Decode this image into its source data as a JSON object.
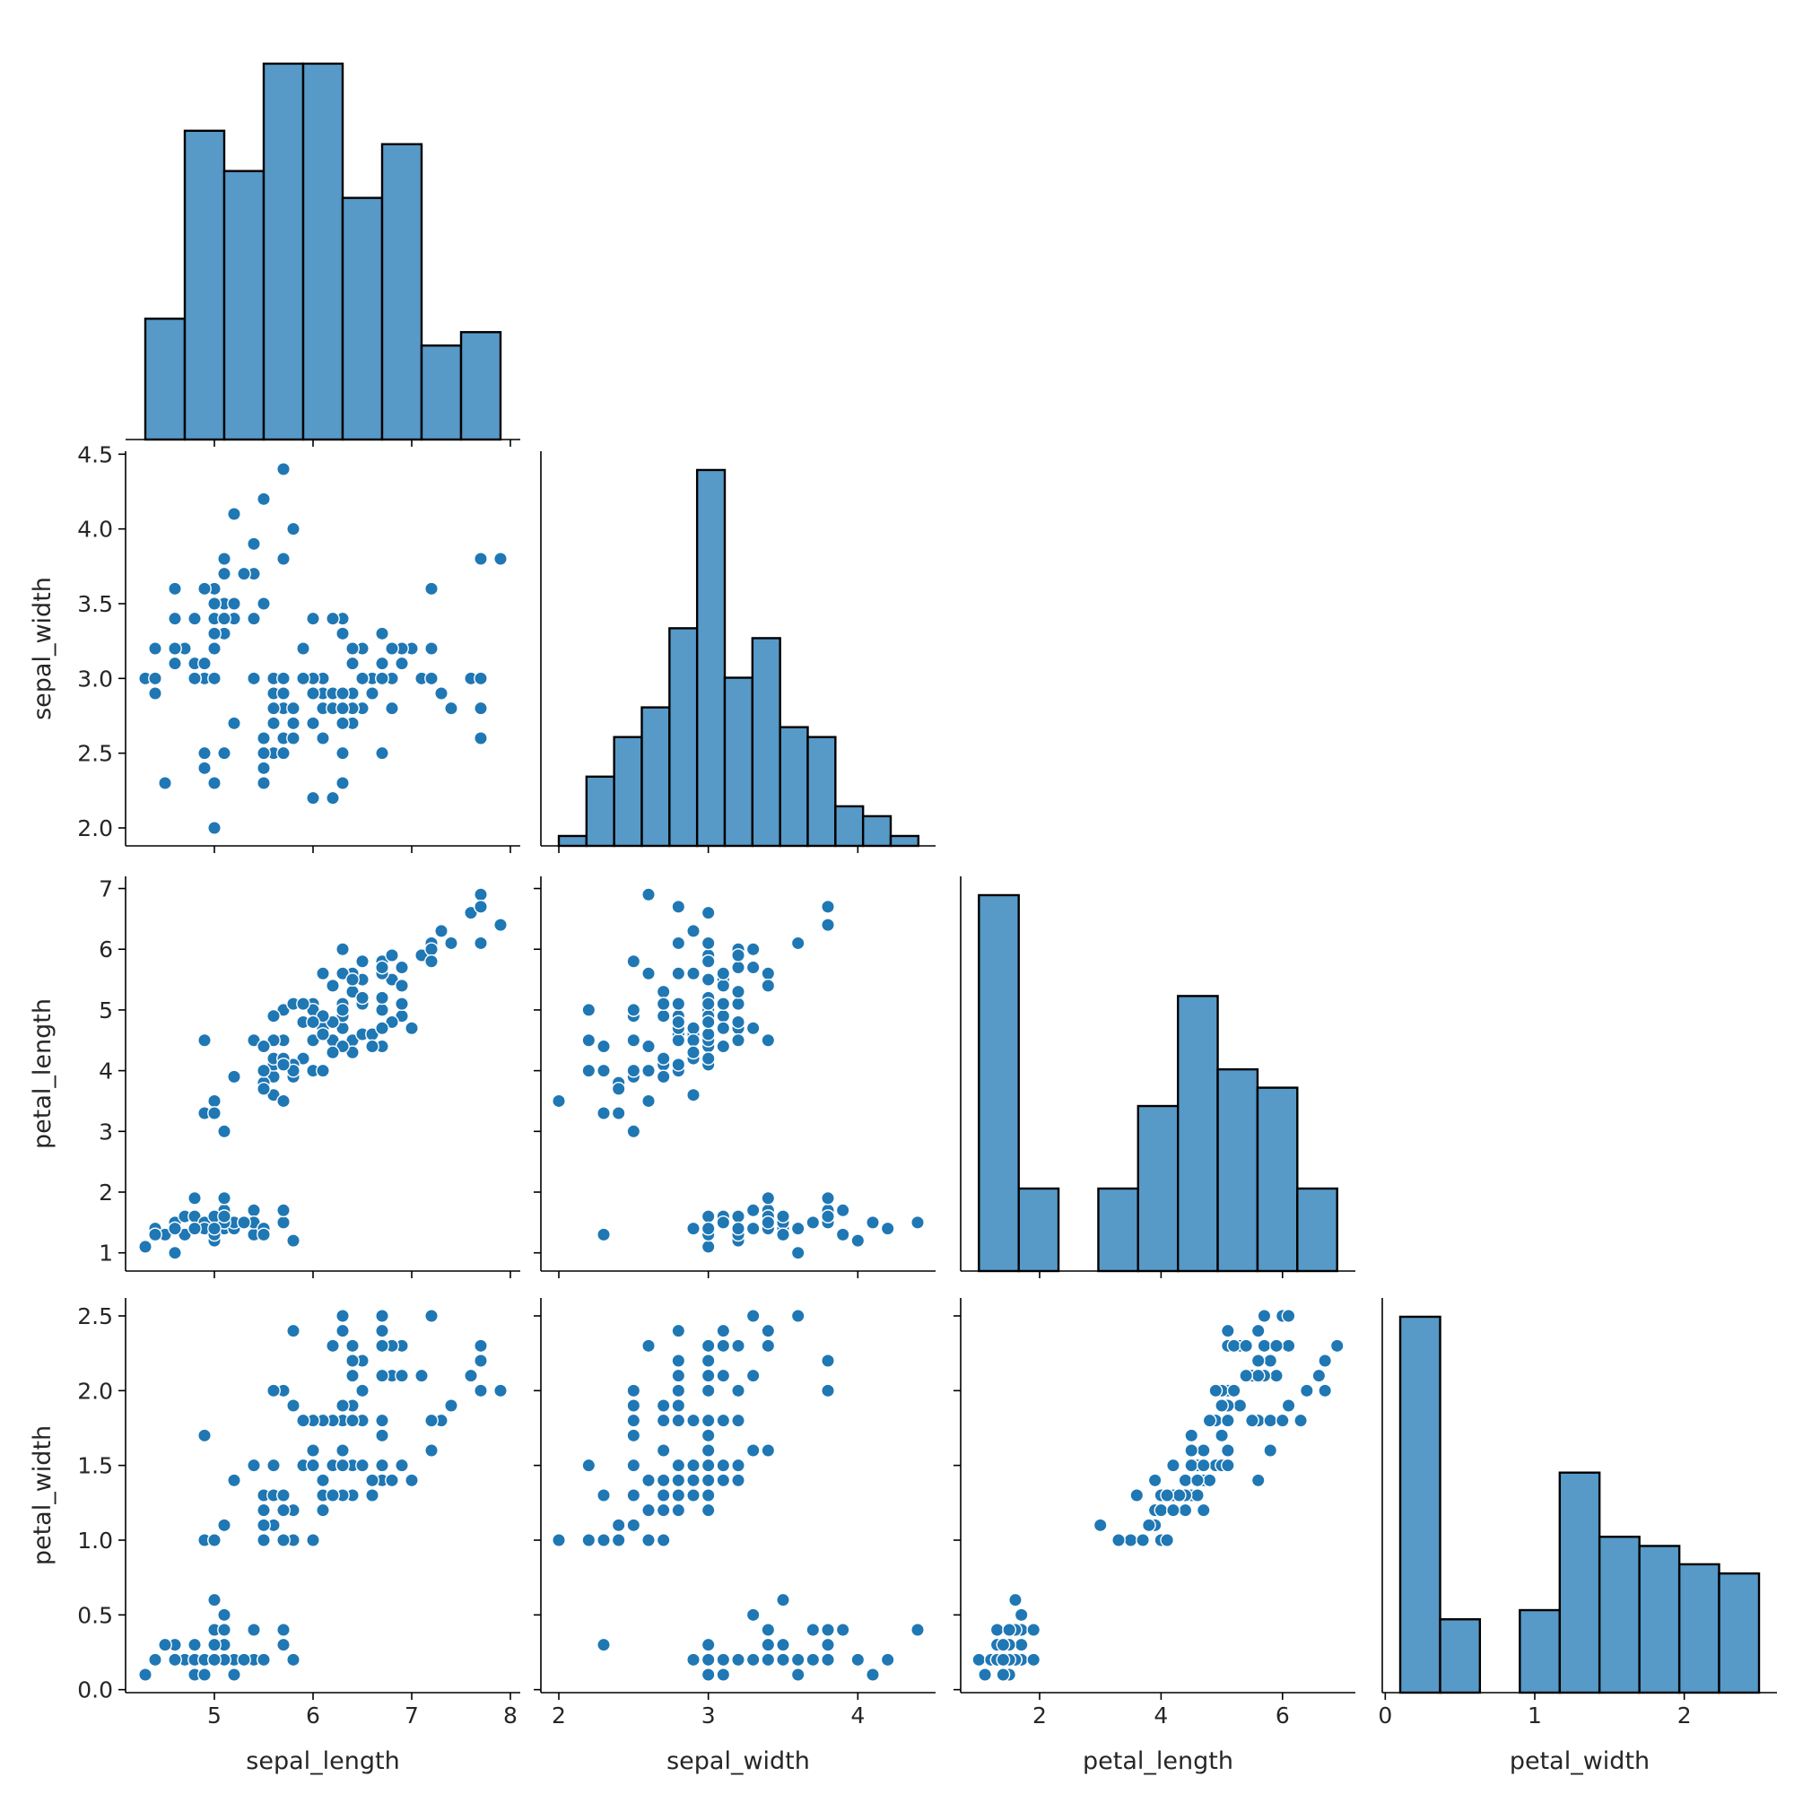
{
  "chart_data": {
    "type": "pairplot",
    "variables": [
      "sepal_length",
      "sepal_width",
      "petal_length",
      "petal_width"
    ],
    "color": "#1f77b4",
    "hist_color": "#5799c7",
    "corner": true,
    "ranges": {
      "sepal_length": [
        4.1,
        8.1
      ],
      "sepal_width": [
        1.88,
        4.52
      ],
      "petal_length": [
        0.7,
        7.2
      ],
      "petal_width": [
        -0.02,
        2.62
      ]
    },
    "ticks": {
      "sepal_length": [
        5,
        6,
        7,
        8
      ],
      "sepal_width": [
        2.0,
        2.5,
        3.0,
        3.5,
        4.0,
        4.5
      ],
      "petal_length": [
        1,
        2,
        3,
        4,
        5,
        6,
        7
      ],
      "petal_width": [
        0.0,
        0.5,
        1.0,
        1.5,
        2.0,
        2.5
      ]
    },
    "x_tick_labels": {
      "sepal_length": [
        "5",
        "6",
        "7",
        "8"
      ],
      "sepal_width": [
        "2",
        "3",
        "4"
      ],
      "petal_length": [
        "2",
        "4",
        "6"
      ],
      "petal_width": [
        "0",
        "1",
        "2"
      ]
    },
    "y_tick_labels": {
      "sepal_width": [
        "2.0",
        "2.5",
        "3.0",
        "3.5",
        "4.0",
        "4.5"
      ],
      "petal_length": [
        "1",
        "2",
        "3",
        "4",
        "5",
        "6",
        "7"
      ],
      "petal_width": [
        "0.0",
        "0.5",
        "1.0",
        "1.5",
        "2.0",
        "2.5"
      ]
    },
    "x_tick_values": {
      "sepal_length": [
        5,
        6,
        7,
        8
      ],
      "sepal_width": [
        2,
        3,
        4
      ],
      "petal_length": [
        2,
        4,
        6
      ],
      "petal_width": [
        0,
        1,
        2
      ]
    },
    "histograms": {
      "sepal_length": {
        "edges": [
          4.3,
          4.7,
          5.1,
          5.5,
          5.9,
          6.3,
          6.7,
          7.1,
          7.5,
          7.9
        ],
        "counts": [
          9,
          23,
          20,
          28,
          28,
          18,
          22,
          7,
          8
        ]
      },
      "sepal_width": {
        "edges": [
          2.0,
          2.185,
          2.37,
          2.555,
          2.74,
          2.925,
          3.11,
          3.295,
          3.48,
          3.665,
          3.85,
          4.035,
          4.22,
          4.405
        ],
        "counts": [
          1,
          7,
          11,
          14,
          22,
          38,
          17,
          21,
          12,
          11,
          4,
          3,
          1
        ]
      },
      "petal_length": {
        "edges": [
          1.0,
          1.656,
          2.311,
          2.967,
          3.622,
          4.278,
          4.933,
          5.589,
          6.244,
          6.9
        ],
        "counts": [
          41,
          9,
          0,
          9,
          18,
          30,
          22,
          20,
          9
        ]
      },
      "petal_width": {
        "edges": [
          0.1,
          0.367,
          0.633,
          0.9,
          1.167,
          1.433,
          1.7,
          1.967,
          2.233,
          2.5
        ],
        "counts": [
          41,
          8,
          0,
          9,
          24,
          17,
          16,
          14,
          13
        ]
      }
    },
    "data": [
      [
        5.1,
        3.5,
        1.4,
        0.2
      ],
      [
        4.9,
        3.0,
        1.4,
        0.2
      ],
      [
        4.7,
        3.2,
        1.3,
        0.2
      ],
      [
        4.6,
        3.1,
        1.5,
        0.2
      ],
      [
        5.0,
        3.6,
        1.4,
        0.2
      ],
      [
        5.4,
        3.9,
        1.7,
        0.4
      ],
      [
        4.6,
        3.4,
        1.4,
        0.3
      ],
      [
        5.0,
        3.4,
        1.5,
        0.2
      ],
      [
        4.4,
        2.9,
        1.4,
        0.2
      ],
      [
        4.9,
        3.1,
        1.5,
        0.1
      ],
      [
        5.4,
        3.7,
        1.5,
        0.2
      ],
      [
        4.8,
        3.4,
        1.6,
        0.2
      ],
      [
        4.8,
        3.0,
        1.4,
        0.1
      ],
      [
        4.3,
        3.0,
        1.1,
        0.1
      ],
      [
        5.8,
        4.0,
        1.2,
        0.2
      ],
      [
        5.7,
        4.4,
        1.5,
        0.4
      ],
      [
        5.4,
        3.9,
        1.3,
        0.4
      ],
      [
        5.1,
        3.5,
        1.4,
        0.3
      ],
      [
        5.7,
        3.8,
        1.7,
        0.3
      ],
      [
        5.1,
        3.8,
        1.5,
        0.3
      ],
      [
        5.4,
        3.4,
        1.7,
        0.2
      ],
      [
        5.1,
        3.7,
        1.5,
        0.4
      ],
      [
        4.6,
        3.6,
        1.0,
        0.2
      ],
      [
        5.1,
        3.3,
        1.7,
        0.5
      ],
      [
        4.8,
        3.4,
        1.9,
        0.2
      ],
      [
        5.0,
        3.0,
        1.6,
        0.2
      ],
      [
        5.0,
        3.4,
        1.6,
        0.4
      ],
      [
        5.2,
        3.5,
        1.5,
        0.2
      ],
      [
        5.2,
        3.4,
        1.4,
        0.2
      ],
      [
        4.7,
        3.2,
        1.6,
        0.2
      ],
      [
        4.8,
        3.1,
        1.6,
        0.2
      ],
      [
        5.4,
        3.4,
        1.5,
        0.4
      ],
      [
        5.2,
        4.1,
        1.5,
        0.1
      ],
      [
        5.5,
        4.2,
        1.4,
        0.2
      ],
      [
        4.9,
        3.1,
        1.5,
        0.2
      ],
      [
        5.0,
        3.2,
        1.2,
        0.2
      ],
      [
        5.5,
        3.5,
        1.3,
        0.2
      ],
      [
        4.9,
        3.6,
        1.4,
        0.1
      ],
      [
        4.4,
        3.0,
        1.3,
        0.2
      ],
      [
        5.1,
        3.4,
        1.5,
        0.2
      ],
      [
        5.0,
        3.5,
        1.3,
        0.3
      ],
      [
        4.5,
        2.3,
        1.3,
        0.3
      ],
      [
        4.4,
        3.2,
        1.3,
        0.2
      ],
      [
        5.0,
        3.5,
        1.6,
        0.6
      ],
      [
        5.1,
        3.8,
        1.9,
        0.4
      ],
      [
        4.8,
        3.0,
        1.4,
        0.3
      ],
      [
        5.1,
        3.8,
        1.6,
        0.2
      ],
      [
        4.6,
        3.2,
        1.4,
        0.2
      ],
      [
        5.3,
        3.7,
        1.5,
        0.2
      ],
      [
        5.0,
        3.3,
        1.4,
        0.2
      ],
      [
        7.0,
        3.2,
        4.7,
        1.4
      ],
      [
        6.4,
        3.2,
        4.5,
        1.5
      ],
      [
        6.9,
        3.1,
        4.9,
        1.5
      ],
      [
        5.5,
        2.3,
        4.0,
        1.3
      ],
      [
        6.5,
        2.8,
        4.6,
        1.5
      ],
      [
        5.7,
        2.8,
        4.5,
        1.3
      ],
      [
        6.3,
        3.3,
        4.7,
        1.6
      ],
      [
        4.9,
        2.4,
        3.3,
        1.0
      ],
      [
        6.6,
        2.9,
        4.6,
        1.3
      ],
      [
        5.2,
        2.7,
        3.9,
        1.4
      ],
      [
        5.0,
        2.0,
        3.5,
        1.0
      ],
      [
        5.9,
        3.0,
        4.2,
        1.5
      ],
      [
        6.0,
        2.2,
        4.0,
        1.0
      ],
      [
        6.1,
        2.9,
        4.7,
        1.4
      ],
      [
        5.6,
        2.9,
        3.6,
        1.3
      ],
      [
        6.7,
        3.1,
        4.4,
        1.4
      ],
      [
        5.6,
        3.0,
        4.5,
        1.5
      ],
      [
        5.8,
        2.7,
        4.1,
        1.0
      ],
      [
        6.2,
        2.2,
        4.5,
        1.5
      ],
      [
        5.6,
        2.5,
        3.9,
        1.1
      ],
      [
        5.9,
        3.2,
        4.8,
        1.8
      ],
      [
        6.1,
        2.8,
        4.0,
        1.3
      ],
      [
        6.3,
        2.5,
        4.9,
        1.5
      ],
      [
        6.1,
        2.8,
        4.7,
        1.2
      ],
      [
        6.4,
        2.9,
        4.3,
        1.3
      ],
      [
        6.6,
        3.0,
        4.4,
        1.4
      ],
      [
        6.8,
        2.8,
        4.8,
        1.4
      ],
      [
        6.7,
        3.0,
        5.0,
        1.7
      ],
      [
        6.0,
        2.9,
        4.5,
        1.5
      ],
      [
        5.7,
        2.6,
        3.5,
        1.0
      ],
      [
        5.5,
        2.4,
        3.8,
        1.1
      ],
      [
        5.5,
        2.4,
        3.7,
        1.0
      ],
      [
        5.8,
        2.7,
        3.9,
        1.2
      ],
      [
        6.0,
        2.7,
        5.1,
        1.6
      ],
      [
        5.4,
        3.0,
        4.5,
        1.5
      ],
      [
        6.0,
        3.4,
        4.5,
        1.6
      ],
      [
        6.7,
        3.1,
        4.7,
        1.5
      ],
      [
        6.3,
        2.3,
        4.4,
        1.3
      ],
      [
        5.6,
        3.0,
        4.1,
        1.3
      ],
      [
        5.5,
        2.5,
        4.0,
        1.3
      ],
      [
        5.5,
        2.6,
        4.4,
        1.2
      ],
      [
        6.1,
        3.0,
        4.6,
        1.4
      ],
      [
        5.8,
        2.6,
        4.0,
        1.2
      ],
      [
        5.0,
        2.3,
        3.3,
        1.0
      ],
      [
        5.6,
        2.7,
        4.2,
        1.3
      ],
      [
        5.7,
        3.0,
        4.2,
        1.2
      ],
      [
        5.7,
        2.9,
        4.2,
        1.3
      ],
      [
        6.2,
        2.9,
        4.3,
        1.3
      ],
      [
        5.1,
        2.5,
        3.0,
        1.1
      ],
      [
        5.7,
        2.8,
        4.1,
        1.3
      ],
      [
        6.3,
        3.3,
        6.0,
        2.5
      ],
      [
        5.8,
        2.7,
        5.1,
        1.9
      ],
      [
        7.1,
        3.0,
        5.9,
        2.1
      ],
      [
        6.3,
        2.9,
        5.6,
        1.8
      ],
      [
        6.5,
        3.0,
        5.8,
        2.2
      ],
      [
        7.6,
        3.0,
        6.6,
        2.1
      ],
      [
        4.9,
        2.5,
        4.5,
        1.7
      ],
      [
        7.3,
        2.9,
        6.3,
        1.8
      ],
      [
        6.7,
        2.5,
        5.8,
        1.8
      ],
      [
        7.2,
        3.6,
        6.1,
        2.5
      ],
      [
        6.5,
        3.2,
        5.1,
        2.0
      ],
      [
        6.4,
        2.7,
        5.3,
        1.9
      ],
      [
        6.8,
        3.0,
        5.5,
        2.1
      ],
      [
        5.7,
        2.5,
        5.0,
        2.0
      ],
      [
        5.8,
        2.8,
        5.1,
        2.4
      ],
      [
        6.4,
        3.2,
        5.3,
        2.3
      ],
      [
        6.5,
        3.0,
        5.5,
        1.8
      ],
      [
        7.7,
        3.8,
        6.7,
        2.2
      ],
      [
        7.7,
        2.6,
        6.9,
        2.3
      ],
      [
        6.0,
        2.2,
        5.0,
        1.5
      ],
      [
        6.9,
        3.2,
        5.7,
        2.3
      ],
      [
        5.6,
        2.8,
        4.9,
        2.0
      ],
      [
        7.7,
        2.8,
        6.7,
        2.0
      ],
      [
        6.3,
        2.7,
        4.9,
        1.8
      ],
      [
        6.7,
        3.3,
        5.7,
        2.1
      ],
      [
        7.2,
        3.2,
        6.0,
        1.8
      ],
      [
        6.2,
        2.8,
        4.8,
        1.8
      ],
      [
        6.1,
        3.0,
        4.9,
        1.8
      ],
      [
        6.4,
        2.8,
        5.6,
        2.1
      ],
      [
        7.2,
        3.0,
        5.8,
        1.6
      ],
      [
        7.4,
        2.8,
        6.1,
        1.9
      ],
      [
        7.9,
        3.8,
        6.4,
        2.0
      ],
      [
        6.4,
        2.8,
        5.6,
        2.2
      ],
      [
        6.3,
        2.8,
        5.1,
        1.5
      ],
      [
        6.1,
        2.6,
        5.6,
        1.4
      ],
      [
        7.7,
        3.0,
        6.1,
        2.3
      ],
      [
        6.3,
        3.4,
        5.6,
        2.4
      ],
      [
        6.4,
        3.1,
        5.5,
        1.8
      ],
      [
        6.0,
        3.0,
        4.8,
        1.8
      ],
      [
        6.9,
        3.1,
        5.4,
        2.1
      ],
      [
        6.7,
        3.1,
        5.6,
        2.4
      ],
      [
        6.9,
        3.1,
        5.1,
        2.3
      ],
      [
        5.8,
        2.7,
        5.1,
        1.9
      ],
      [
        6.8,
        3.2,
        5.9,
        2.3
      ],
      [
        6.7,
        3.3,
        5.7,
        2.5
      ],
      [
        6.7,
        3.0,
        5.2,
        2.3
      ],
      [
        6.3,
        2.5,
        5.0,
        1.9
      ],
      [
        6.5,
        3.0,
        5.2,
        2.0
      ],
      [
        6.2,
        3.4,
        5.4,
        2.3
      ],
      [
        5.9,
        3.0,
        5.1,
        1.8
      ]
    ]
  }
}
